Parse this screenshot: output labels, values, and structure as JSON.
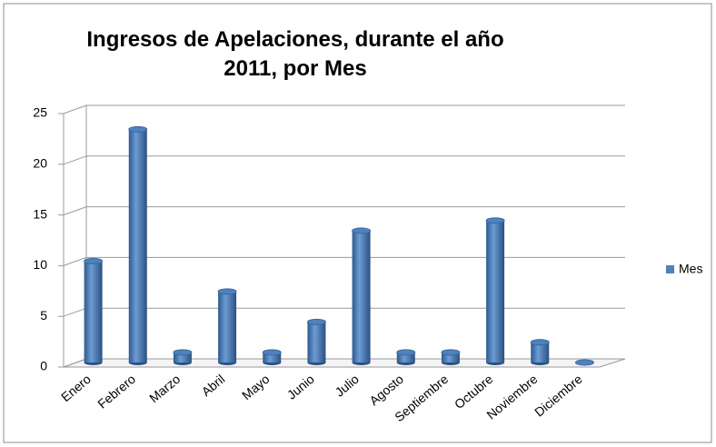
{
  "chart_data": {
    "type": "bar",
    "title": "Ingresos de Apelaciones, durante el año 2011, por Mes",
    "categories": [
      "Enero",
      "Febrero",
      "Marzo",
      "Abril",
      "Mayo",
      "Junio",
      "Julio",
      "Agosto",
      "Septiembre",
      "Octubre",
      "Noviembre",
      "Diciembre"
    ],
    "series": [
      {
        "name": "Mes",
        "color": "#4f81bd",
        "values": [
          10,
          23,
          1,
          7,
          1,
          4,
          13,
          1,
          1,
          14,
          2,
          0
        ]
      }
    ],
    "ylim": [
      0,
      25
    ],
    "yticks": [
      0,
      5,
      10,
      15,
      20,
      25
    ],
    "grid": true,
    "legend": "right"
  }
}
